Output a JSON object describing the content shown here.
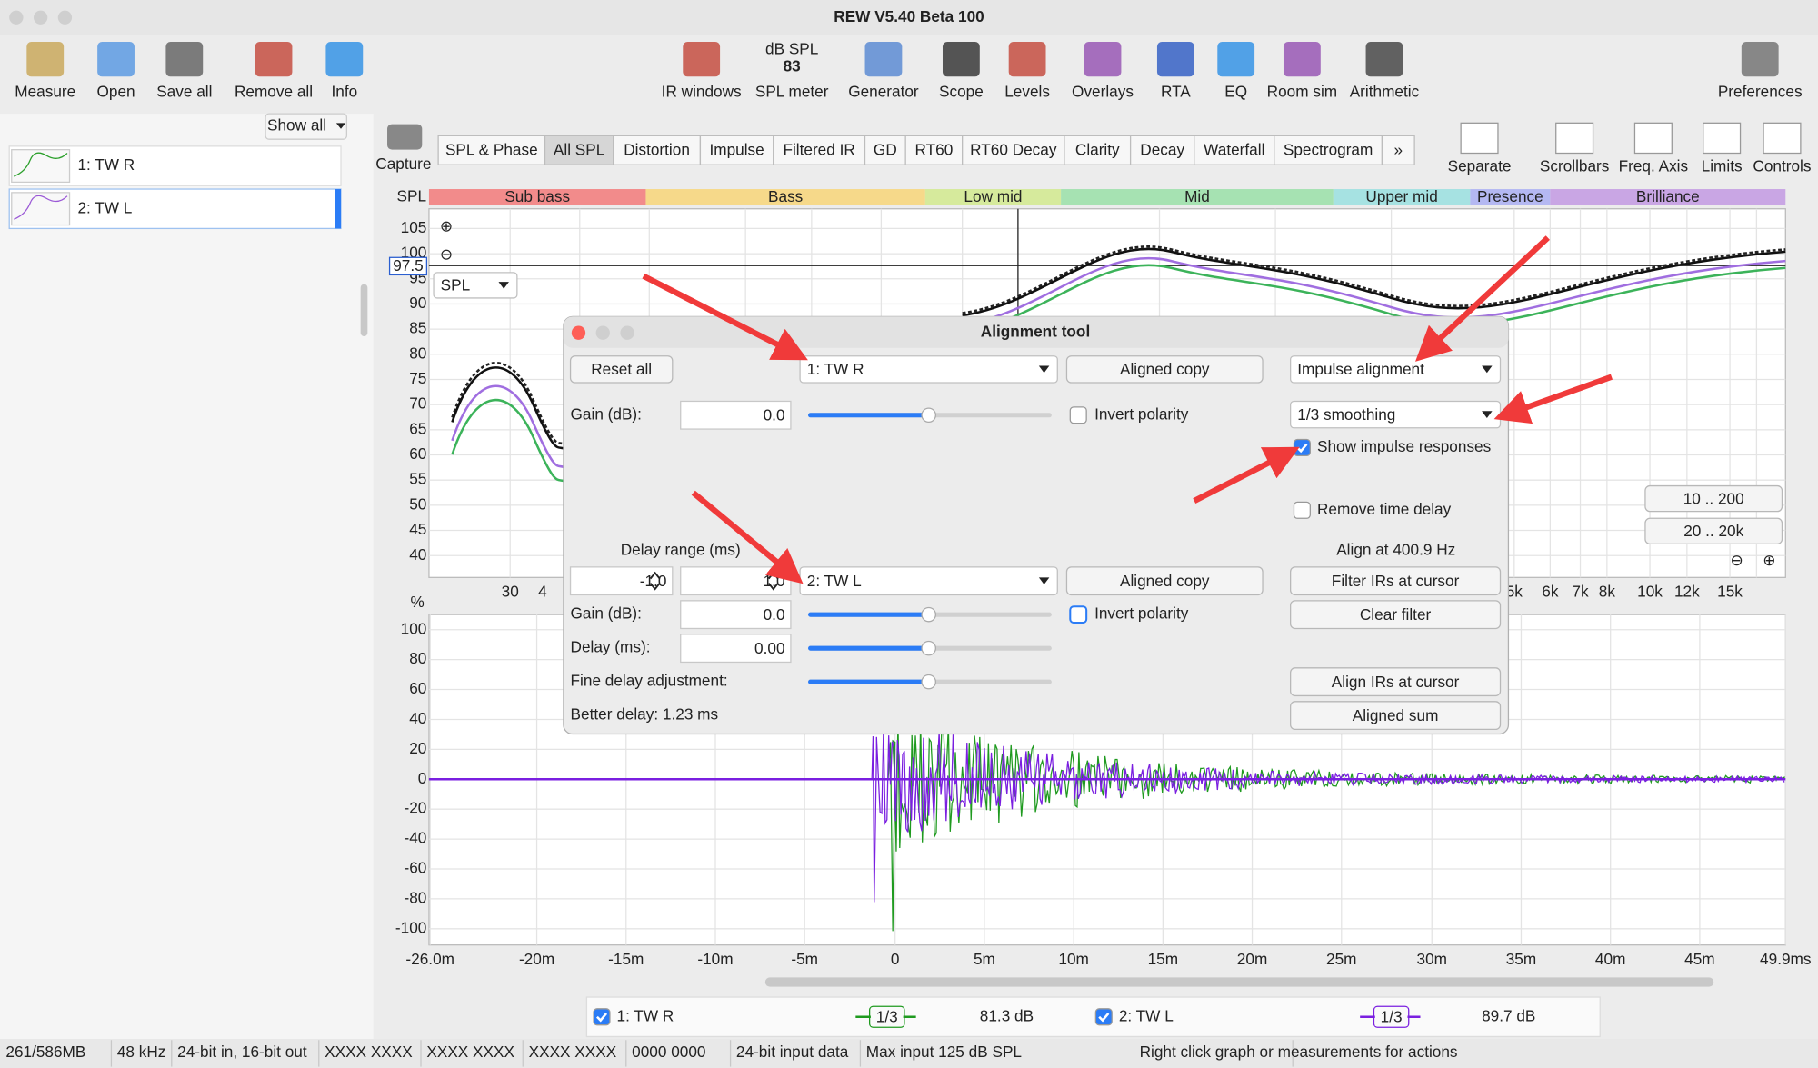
{
  "window_title": "REW V5.40 Beta 100",
  "toolbar": [
    "Measure",
    "Open",
    "Save all",
    "Remove all",
    "Info",
    "IR windows",
    "SPL meter",
    "Generator",
    "Scope",
    "Levels",
    "Overlays",
    "RTA",
    "EQ",
    "Room sim",
    "Arithmetic",
    "Preferences"
  ],
  "spl_meter": {
    "unit": "dB SPL",
    "reading": "83"
  },
  "sidebar": {
    "show_all": "Show all",
    "measurements": [
      "1: TW R",
      "2: TW L"
    ]
  },
  "capture": "Capture",
  "tabs": [
    "SPL & Phase",
    "All SPL",
    "Distortion",
    "Impulse",
    "Filtered IR",
    "GD",
    "RT60",
    "RT60 Decay",
    "Clarity",
    "Decay",
    "Waterfall",
    "Spectrogram",
    "»"
  ],
  "right_tools": [
    "Separate",
    "Scrollbars",
    "Freq. Axis",
    "Limits",
    "Controls"
  ],
  "bands": [
    "Sub bass",
    "Bass",
    "Low mid",
    "Mid",
    "Upper mid",
    "Presence",
    "Brilliance"
  ],
  "spl_graph": {
    "axis_label": "SPL",
    "yticks": [
      "105",
      "100",
      "95",
      "90",
      "85",
      "80",
      "75",
      "70",
      "65",
      "60",
      "55",
      "50",
      "45",
      "40"
    ],
    "cursor_value": "97.5",
    "selector": "SPL",
    "xticks": [
      "30",
      "4",
      "5k",
      "6k",
      "7k",
      "8k",
      "10k",
      "12k",
      "15k"
    ],
    "range_buttons": [
      "10 .. 200",
      "20 .. 20k"
    ]
  },
  "impulse_graph": {
    "axis_label": "%",
    "yticks": [
      "100",
      "80",
      "60",
      "40",
      "20",
      "0",
      "-20",
      "-40",
      "-60",
      "-80",
      "-100"
    ],
    "xticks": [
      "-26.0m",
      "-20m",
      "-15m",
      "-10m",
      "-5m",
      "0",
      "5m",
      "10m",
      "15m",
      "20m",
      "25m",
      "30m",
      "35m",
      "40m",
      "45m",
      "49.9ms"
    ]
  },
  "dialog": {
    "title": "Alignment tool",
    "reset_all": "Reset all",
    "measurement_1": "1: TW R",
    "aligned_copy_1": "Aligned copy",
    "mode": "Impulse alignment",
    "gain_label_1": "Gain (dB):",
    "gain_1": "0.0",
    "invert_1": "Invert polarity",
    "smoothing": "1/3 smoothing",
    "show_impulse": "Show impulse responses",
    "remove_delay": "Remove time delay",
    "delay_range_label": "Delay range (ms)",
    "delay_min": "-1.0",
    "delay_max": "1.0",
    "align_at": "Align at 400.9 Hz",
    "measurement_2": "2: TW L",
    "aligned_copy_2": "Aligned copy",
    "filter_irs": "Filter IRs at cursor",
    "gain_label_2": "Gain (dB):",
    "gain_2": "0.0",
    "invert_2": "Invert polarity",
    "clear_filter": "Clear filter",
    "delay_label": "Delay (ms):",
    "delay": "0.00",
    "fine_delay_label": "Fine delay adjustment:",
    "align_irs": "Align IRs at cursor",
    "better_delay": "Better delay: 1.23 ms",
    "aligned_sum": "Aligned sum"
  },
  "legend": [
    {
      "name": "1: TW R",
      "smoothing": "1/3",
      "level": "81.3 dB"
    },
    {
      "name": "2: TW L",
      "smoothing": "1/3",
      "level": "89.7 dB"
    }
  ],
  "status_bar": [
    "261/586MB",
    "48 kHz",
    "24-bit in, 16-bit out",
    "XXXX XXXX",
    "XXXX XXXX",
    "XXXX XXXX",
    "0000 0000",
    "24-bit input data",
    "Max input 125 dB SPL",
    "Right click graph or measurements for actions"
  ]
}
